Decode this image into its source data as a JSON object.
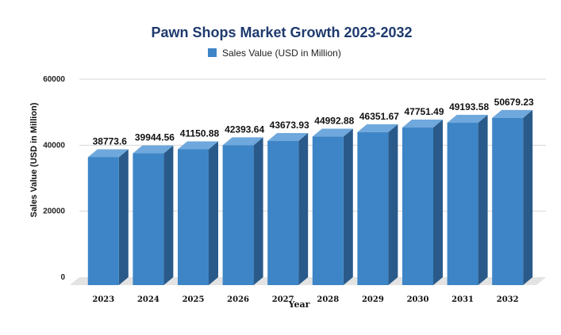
{
  "chart_data": {
    "type": "bar",
    "title": "Pawn Shops Market Growth 2023-2032",
    "xlabel": "Year",
    "ylabel": "Sales Value (USD in Million)",
    "categories": [
      "2023",
      "2024",
      "2025",
      "2026",
      "2027",
      "2028",
      "2029",
      "2030",
      "2031",
      "2032"
    ],
    "series": [
      {
        "name": "Sales Value (USD in Million)",
        "values": [
          38773.6,
          39944.56,
          41150.88,
          42393.64,
          43673.93,
          44992.88,
          46351.67,
          47751.49,
          49193.58,
          50679.23
        ]
      }
    ],
    "data_labels": [
      "38773.6",
      "39944.56",
      "41150.88",
      "42393.64",
      "43673.93",
      "44992.88",
      "46351.67",
      "47751.49",
      "49193.58",
      "50679.23"
    ],
    "yticks": [
      "0",
      "20000",
      "40000",
      "60000"
    ],
    "ylim": [
      0,
      60000
    ],
    "grid": true,
    "legend_position": "top",
    "colors": {
      "bar_front": "#3d85c6",
      "bar_side": "#2a5a8a",
      "bar_top": "#6fa8dc",
      "title": "#1f3a6e"
    }
  }
}
